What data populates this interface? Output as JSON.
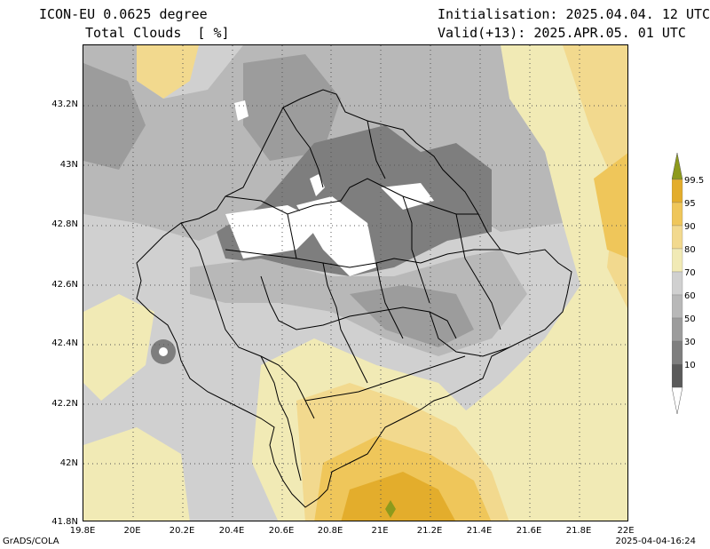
{
  "header": {
    "model": "ICON-EU 0.0625 degree",
    "variable": "Total Clouds  [ %]",
    "init": "Initialisation: 2025.04.04. 12 UTC",
    "valid": "Valid(+13): 2025.APR.05. 01 UTC"
  },
  "axes": {
    "y_labels": [
      "43.2N",
      "43N",
      "42.8N",
      "42.6N",
      "42.4N",
      "42.2N",
      "42N",
      "41.8N"
    ],
    "x_labels": [
      "19.8E",
      "20E",
      "20.2E",
      "20.4E",
      "20.6E",
      "20.8E",
      "21E",
      "21.2E",
      "21.4E",
      "21.6E",
      "21.8E",
      "22E"
    ]
  },
  "legend": {
    "levels": [
      "99.5",
      "95",
      "90",
      "80",
      "70",
      "60",
      "50",
      "30",
      "10"
    ],
    "colors": [
      "#8d9a1c",
      "#e3ad2c",
      "#efc65a",
      "#f2d98e",
      "#f1eab5",
      "#d0d0d0",
      "#b8b8b8",
      "#9c9c9c",
      "#7e7e7e",
      "#5a5a5a",
      "#ffffff"
    ]
  },
  "footer": {
    "left": "GrADS/COLA",
    "right": "2025-04-04-16:24"
  }
}
